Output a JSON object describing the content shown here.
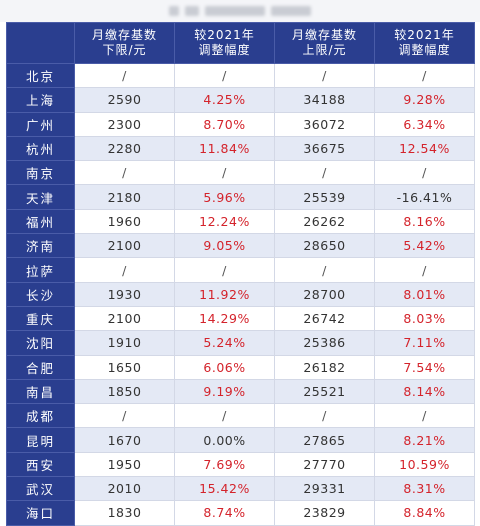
{
  "header": {
    "col_city": "",
    "col_lower_l1": "月缴存基数",
    "col_lower_l2": "下限/元",
    "col_lower_change_l1": "较2021年",
    "col_lower_change_l2": "调整幅度",
    "col_upper_l1": "月缴存基数",
    "col_upper_l2": "上限/元",
    "col_upper_change_l1": "较2021年",
    "col_upper_change_l2": "调整幅度"
  },
  "rows": [
    {
      "city": "北京",
      "lower": "/",
      "lower_change": "/",
      "upper": "/",
      "upper_change": "/"
    },
    {
      "city": "上海",
      "lower": "2590",
      "lower_change": "4.25%",
      "upper": "34188",
      "upper_change": "9.28%"
    },
    {
      "city": "广州",
      "lower": "2300",
      "lower_change": "8.70%",
      "upper": "36072",
      "upper_change": "6.34%"
    },
    {
      "city": "杭州",
      "lower": "2280",
      "lower_change": "11.84%",
      "upper": "36675",
      "upper_change": "12.54%"
    },
    {
      "city": "南京",
      "lower": "/",
      "lower_change": "/",
      "upper": "/",
      "upper_change": "/"
    },
    {
      "city": "天津",
      "lower": "2180",
      "lower_change": "5.96%",
      "upper": "25539",
      "upper_change": "-16.41%"
    },
    {
      "city": "福州",
      "lower": "1960",
      "lower_change": "12.24%",
      "upper": "26262",
      "upper_change": "8.16%"
    },
    {
      "city": "济南",
      "lower": "2100",
      "lower_change": "9.05%",
      "upper": "28650",
      "upper_change": "5.42%"
    },
    {
      "city": "拉萨",
      "lower": "/",
      "lower_change": "/",
      "upper": "/",
      "upper_change": "/"
    },
    {
      "city": "长沙",
      "lower": "1930",
      "lower_change": "11.92%",
      "upper": "28700",
      "upper_change": "8.01%"
    },
    {
      "city": "重庆",
      "lower": "2100",
      "lower_change": "14.29%",
      "upper": "26742",
      "upper_change": "8.03%"
    },
    {
      "city": "沈阳",
      "lower": "1910",
      "lower_change": "5.24%",
      "upper": "25386",
      "upper_change": "7.11%"
    },
    {
      "city": "合肥",
      "lower": "1650",
      "lower_change": "6.06%",
      "upper": "26182",
      "upper_change": "7.54%"
    },
    {
      "city": "南昌",
      "lower": "1850",
      "lower_change": "9.19%",
      "upper": "25521",
      "upper_change": "8.14%"
    },
    {
      "city": "成都",
      "lower": "/",
      "lower_change": "/",
      "upper": "/",
      "upper_change": "/"
    },
    {
      "city": "昆明",
      "lower": "1670",
      "lower_change": "0.00%",
      "upper": "27865",
      "upper_change": "8.21%"
    },
    {
      "city": "西安",
      "lower": "1950",
      "lower_change": "7.69%",
      "upper": "27770",
      "upper_change": "10.59%"
    },
    {
      "city": "武汉",
      "lower": "2010",
      "lower_change": "15.42%",
      "upper": "29331",
      "upper_change": "8.31%"
    },
    {
      "city": "海口",
      "lower": "1830",
      "lower_change": "8.74%",
      "upper": "23829",
      "upper_change": "8.84%"
    }
  ],
  "colors": {
    "header_bg": "#2a3e8f",
    "stripe_bg": "#e4e9f5",
    "rate_red": "#d4232b"
  }
}
